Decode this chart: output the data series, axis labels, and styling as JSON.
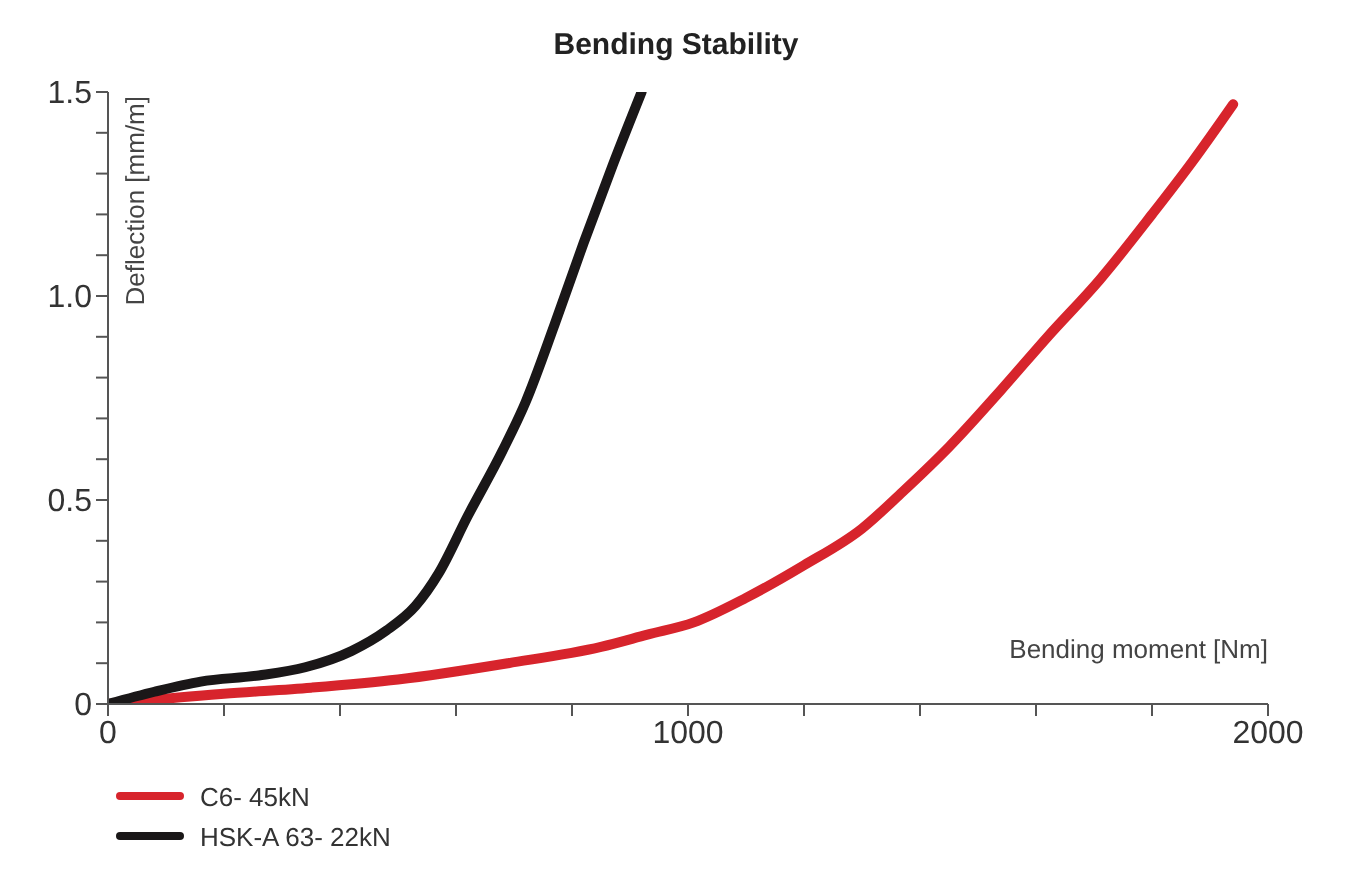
{
  "chart_data": {
    "type": "line",
    "title": "Bending Stability",
    "xlabel": "Bending moment [Nm]",
    "ylabel": "Deflection [mm/m]",
    "xlim": [
      0,
      2000
    ],
    "ylim": [
      0,
      1.5
    ],
    "xticks": [
      0,
      {
        "value": 200,
        "label": null
      },
      {
        "value": 400,
        "label": null
      },
      {
        "value": 600,
        "label": null
      },
      {
        "value": 800,
        "label": null
      },
      1000,
      {
        "value": 1200,
        "label": null
      },
      {
        "value": 1400,
        "label": null
      },
      {
        "value": 1600,
        "label": null
      },
      {
        "value": 1800,
        "label": null
      },
      2000
    ],
    "yticks": [
      0,
      {
        "value": 0.1,
        "label": null
      },
      {
        "value": 0.2,
        "label": null
      },
      {
        "value": 0.3,
        "label": null
      },
      {
        "value": 0.4,
        "label": null
      },
      0.5,
      {
        "value": 0.6,
        "label": null
      },
      {
        "value": 0.7,
        "label": null
      },
      {
        "value": 0.8,
        "label": null
      },
      {
        "value": 0.9,
        "label": null
      },
      {
        "value": 1,
        "label": "1.0"
      },
      {
        "value": 1.1,
        "label": null
      },
      {
        "value": 1.2,
        "label": null
      },
      {
        "value": 1.3,
        "label": null
      },
      {
        "value": 1.4,
        "label": null
      },
      1.5
    ],
    "grid": false,
    "legend": "bottom left",
    "marker": "none",
    "line_style": "solid",
    "series": [
      {
        "name": "C6- 45kN",
        "color": "#d7242c",
        "x": [
          0,
          200,
          350,
          500,
          690,
          850,
          930,
          1010,
          1100,
          1200,
          1300,
          1370,
          1450,
          1540,
          1620,
          1710,
          1800,
          1870,
          1940
        ],
        "values": [
          0,
          0.025,
          0.04,
          0.06,
          0.1,
          0.14,
          0.17,
          0.2,
          0.26,
          0.34,
          0.43,
          0.52,
          0.63,
          0.77,
          0.9,
          1.04,
          1.2,
          1.33,
          1.47
        ]
      },
      {
        "name": "HSK-A 63- 22kN",
        "color": "#1a1718",
        "x": [
          0,
          80,
          160,
          260,
          340,
          420,
          480,
          530,
          570,
          620,
          680,
          720,
          770,
          820,
          870,
          920
        ],
        "values": [
          0,
          0.03,
          0.055,
          0.07,
          0.09,
          0.13,
          0.18,
          0.24,
          0.32,
          0.46,
          0.62,
          0.74,
          0.93,
          1.13,
          1.32,
          1.5
        ]
      }
    ]
  }
}
